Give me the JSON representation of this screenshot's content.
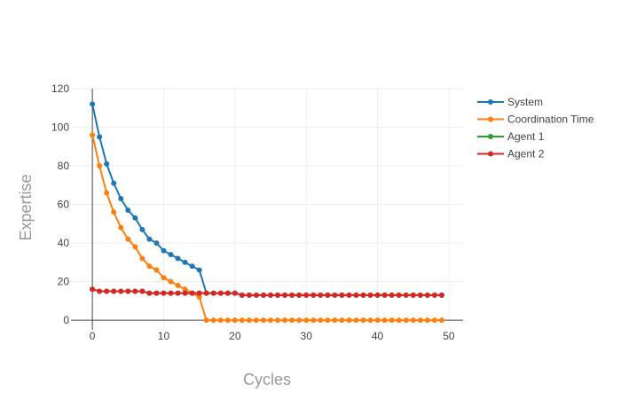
{
  "chart_data": {
    "type": "line",
    "title": "",
    "xlabel": "Cycles",
    "ylabel": "Expertise",
    "xlim": [
      -3,
      52
    ],
    "ylim": [
      -5,
      120
    ],
    "xticks": [
      0,
      10,
      20,
      30,
      40,
      50
    ],
    "yticks": [
      0,
      20,
      40,
      60,
      80,
      100,
      120
    ],
    "grid": true,
    "legend_position": "top-right",
    "series": [
      {
        "name": "System",
        "color": "#1f77b4",
        "x": [
          0,
          1,
          2,
          3,
          4,
          5,
          6,
          7,
          8,
          9,
          10,
          11,
          12,
          13,
          14,
          15,
          16,
          17,
          18,
          19,
          20,
          21,
          22,
          23,
          24,
          25,
          26,
          27,
          28,
          29,
          30,
          31,
          32,
          33,
          34,
          35,
          36,
          37,
          38,
          39,
          40,
          41,
          42,
          43,
          44,
          45,
          46,
          47,
          48,
          49
        ],
        "values": [
          112,
          95,
          81,
          71,
          63,
          57,
          53,
          47,
          42,
          40,
          36,
          34,
          32,
          30,
          28,
          26,
          14,
          14,
          14,
          14,
          14,
          13,
          13,
          13,
          13,
          13,
          13,
          13,
          13,
          13,
          13,
          13,
          13,
          13,
          13,
          13,
          13,
          13,
          13,
          13,
          13,
          13,
          13,
          13,
          13,
          13,
          13,
          13,
          13,
          13
        ]
      },
      {
        "name": "Coordination Time",
        "color": "#ff7f0e",
        "x": [
          0,
          1,
          2,
          3,
          4,
          5,
          6,
          7,
          8,
          9,
          10,
          11,
          12,
          13,
          14,
          15,
          16,
          17,
          18,
          19,
          20,
          21,
          22,
          23,
          24,
          25,
          26,
          27,
          28,
          29,
          30,
          31,
          32,
          33,
          34,
          35,
          36,
          37,
          38,
          39,
          40,
          41,
          42,
          43,
          44,
          45,
          46,
          47,
          48,
          49
        ],
        "values": [
          96,
          80,
          66,
          56,
          48,
          42,
          38,
          32,
          28,
          26,
          22,
          20,
          18,
          16,
          14,
          12,
          0,
          0,
          0,
          0,
          0,
          0,
          0,
          0,
          0,
          0,
          0,
          0,
          0,
          0,
          0,
          0,
          0,
          0,
          0,
          0,
          0,
          0,
          0,
          0,
          0,
          0,
          0,
          0,
          0,
          0,
          0,
          0,
          0,
          0
        ]
      },
      {
        "name": "Agent 1",
        "color": "#2ca02c",
        "x": [
          0,
          1,
          2,
          3,
          4,
          5,
          6,
          7,
          8,
          9,
          10,
          11,
          12,
          13,
          14,
          15,
          16,
          17,
          18,
          19,
          20,
          21,
          22,
          23,
          24,
          25,
          26,
          27,
          28,
          29,
          30,
          31,
          32,
          33,
          34,
          35,
          36,
          37,
          38,
          39,
          40,
          41,
          42,
          43,
          44,
          45,
          46,
          47,
          48,
          49
        ],
        "values": [
          16,
          15,
          15,
          15,
          15,
          15,
          15,
          15,
          14,
          14,
          14,
          14,
          14,
          14,
          14,
          14,
          14,
          14,
          14,
          14,
          14,
          13,
          13,
          13,
          13,
          13,
          13,
          13,
          13,
          13,
          13,
          13,
          13,
          13,
          13,
          13,
          13,
          13,
          13,
          13,
          13,
          13,
          13,
          13,
          13,
          13,
          13,
          13,
          13,
          13
        ]
      },
      {
        "name": "Agent 2",
        "color": "#d62728",
        "x": [
          0,
          1,
          2,
          3,
          4,
          5,
          6,
          7,
          8,
          9,
          10,
          11,
          12,
          13,
          14,
          15,
          16,
          17,
          18,
          19,
          20,
          21,
          22,
          23,
          24,
          25,
          26,
          27,
          28,
          29,
          30,
          31,
          32,
          33,
          34,
          35,
          36,
          37,
          38,
          39,
          40,
          41,
          42,
          43,
          44,
          45,
          46,
          47,
          48,
          49
        ],
        "values": [
          16,
          15,
          15,
          15,
          15,
          15,
          15,
          15,
          14,
          14,
          14,
          14,
          14,
          14,
          14,
          14,
          14,
          14,
          14,
          14,
          14,
          13,
          13,
          13,
          13,
          13,
          13,
          13,
          13,
          13,
          13,
          13,
          13,
          13,
          13,
          13,
          13,
          13,
          13,
          13,
          13,
          13,
          13,
          13,
          13,
          13,
          13,
          13,
          13,
          13
        ]
      }
    ]
  }
}
